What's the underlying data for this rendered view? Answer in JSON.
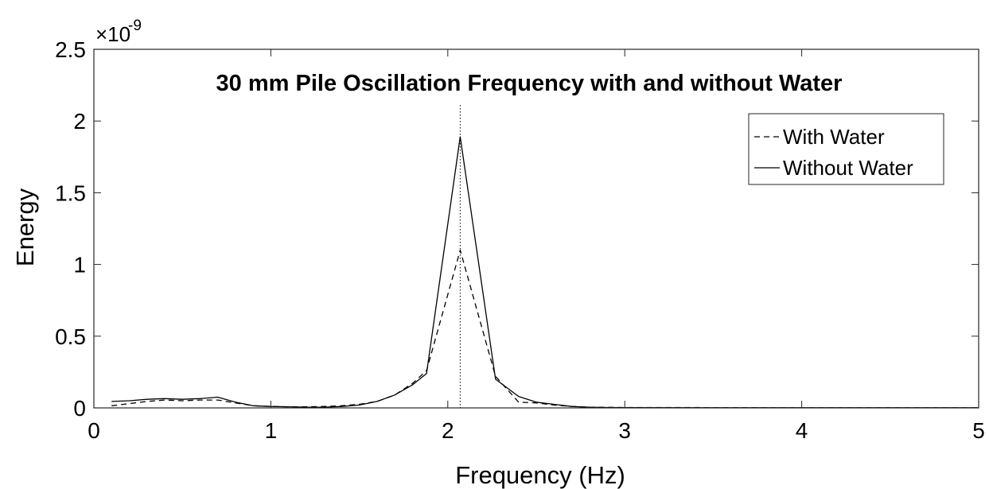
{
  "chart_data": {
    "type": "line",
    "title": "30 mm Pile Oscillation Frequency with and without Water",
    "xlabel": "Frequency (Hz)",
    "ylabel": "Energy",
    "y_multiplier_label": {
      "base": "×10",
      "exponent": "-9"
    },
    "xlim": [
      0,
      5
    ],
    "ylim": [
      0,
      2.5
    ],
    "x_ticks": [
      0,
      1,
      2,
      3,
      4,
      5
    ],
    "x_tick_labels": [
      "0",
      "1",
      "2",
      "3",
      "4",
      "5"
    ],
    "y_ticks": [
      0,
      0.5,
      1,
      1.5,
      2,
      2.5
    ],
    "y_tick_labels": [
      "0",
      "0.5",
      "1",
      "1.5",
      "2",
      "2.5"
    ],
    "grid": false,
    "legend_position": "top-right",
    "reference_line_x": 2.07,
    "series": [
      {
        "name": "With Water",
        "style": "dashed",
        "color": "#000000",
        "x": [
          0.1,
          0.2,
          0.3,
          0.4,
          0.5,
          0.6,
          0.7,
          0.8,
          0.9,
          1.0,
          1.1,
          1.2,
          1.3,
          1.4,
          1.5,
          1.6,
          1.7,
          1.8,
          1.88,
          2.07,
          2.27,
          2.4,
          2.5,
          2.6,
          2.7,
          2.8,
          2.9,
          3.0,
          3.5,
          4.0,
          4.5,
          5.0
        ],
        "y": [
          0.015,
          0.03,
          0.045,
          0.055,
          0.05,
          0.055,
          0.055,
          0.035,
          0.015,
          0.01,
          0.008,
          0.008,
          0.01,
          0.015,
          0.025,
          0.045,
          0.09,
          0.17,
          0.26,
          1.1,
          0.22,
          0.04,
          0.035,
          0.02,
          0.01,
          0.005,
          0.004,
          0.003,
          0.002,
          0.001,
          0.001,
          0.001
        ]
      },
      {
        "name": "Without Water",
        "style": "solid",
        "color": "#000000",
        "x": [
          0.1,
          0.2,
          0.3,
          0.4,
          0.5,
          0.6,
          0.7,
          0.8,
          0.9,
          1.0,
          1.1,
          1.2,
          1.3,
          1.4,
          1.5,
          1.6,
          1.7,
          1.8,
          1.88,
          2.07,
          2.27,
          2.4,
          2.5,
          2.6,
          2.7,
          2.8,
          2.9,
          3.0,
          3.5,
          4.0,
          4.5,
          5.0
        ],
        "y": [
          0.045,
          0.05,
          0.06,
          0.065,
          0.06,
          0.065,
          0.075,
          0.04,
          0.015,
          0.01,
          0.008,
          0.005,
          0.005,
          0.01,
          0.02,
          0.045,
          0.09,
          0.16,
          0.24,
          1.89,
          0.2,
          0.08,
          0.04,
          0.025,
          0.01,
          0.005,
          0.003,
          0.002,
          0.001,
          0.001,
          0.001,
          0.001
        ]
      }
    ]
  }
}
